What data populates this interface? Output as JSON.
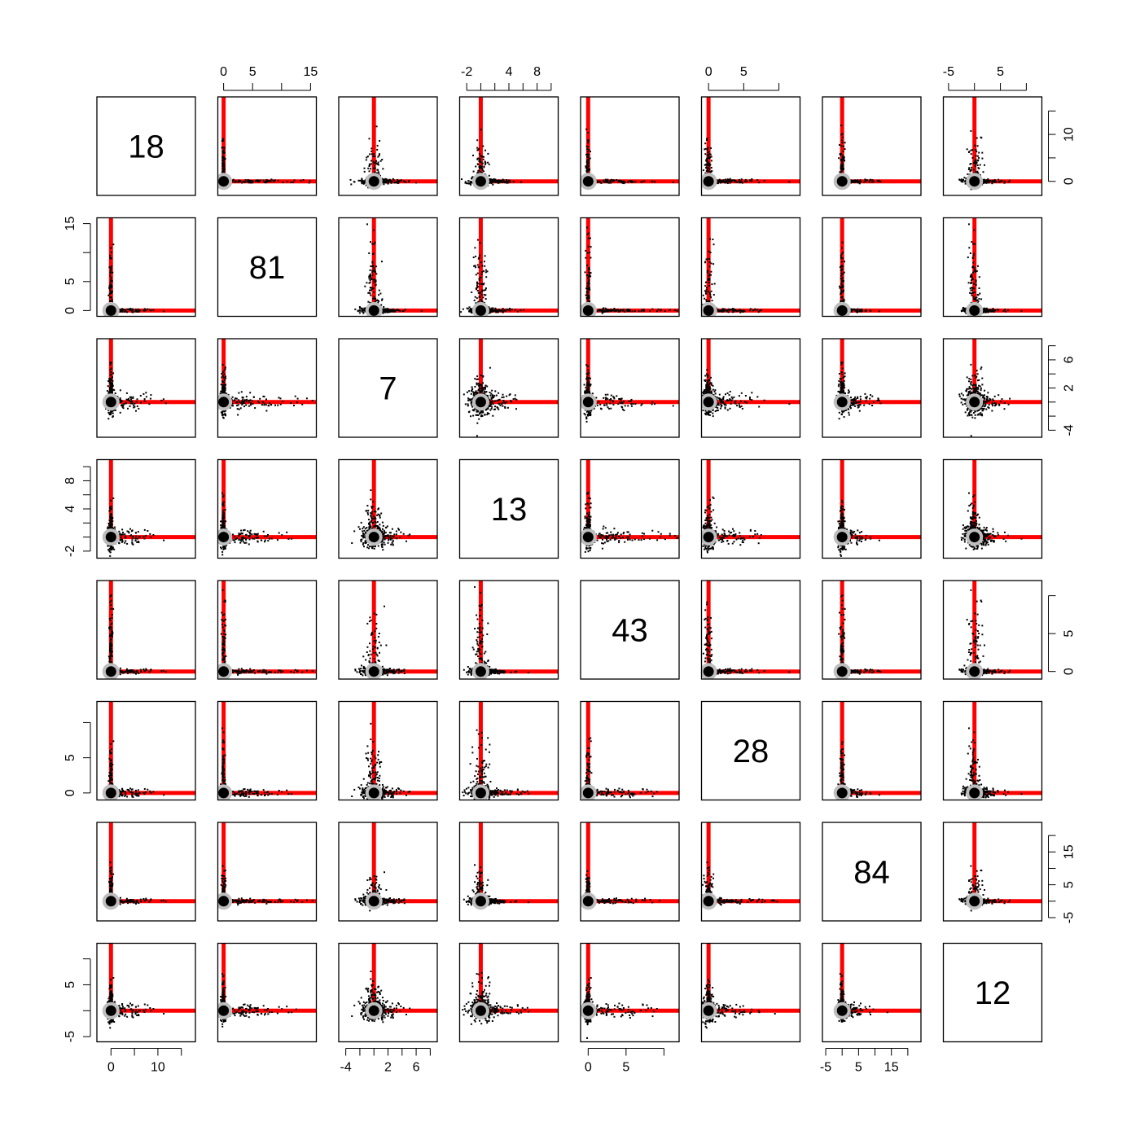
{
  "chart_data": {
    "type": "scatter",
    "layout": "pairs-matrix",
    "n_variables": 8,
    "diagonal_labels": [
      "18",
      "81",
      "7",
      "13",
      "43",
      "28",
      "84",
      "12"
    ],
    "colors": {
      "points": "#000000",
      "reference_lines": "#ff0000",
      "center_marker_fill": "#000000",
      "center_marker_ring": "#bebebe",
      "frame": "#000000"
    },
    "variables": [
      {
        "range": [
          -3,
          18
        ],
        "ticks": [
          0,
          5,
          10,
          15
        ],
        "tick_labels": [
          "0",
          "10"
        ],
        "tick_label_values": [
          0,
          10
        ]
      },
      {
        "range": [
          -1,
          16
        ],
        "ticks": [
          0,
          5,
          10,
          15
        ],
        "tick_labels": [
          "0",
          "5",
          "15"
        ],
        "tick_label_values": [
          0,
          5,
          15
        ]
      },
      {
        "range": [
          -5,
          9
        ],
        "ticks": [
          -4,
          -2,
          0,
          2,
          4,
          6,
          8
        ],
        "tick_labels": [
          "-4",
          "2",
          "6"
        ],
        "tick_label_values": [
          -4,
          2,
          6
        ]
      },
      {
        "range": [
          -3,
          11
        ],
        "ticks": [
          -2,
          0,
          2,
          4,
          6,
          8,
          10
        ],
        "tick_labels": [
          "-2",
          "4",
          "8"
        ],
        "tick_label_values": [
          -2,
          4,
          8
        ]
      },
      {
        "range": [
          -1,
          12
        ],
        "ticks": [
          0,
          5,
          10
        ],
        "tick_labels": [
          "0",
          "5"
        ],
        "tick_label_values": [
          0,
          5
        ]
      },
      {
        "range": [
          -1,
          13
        ],
        "ticks": [
          0,
          5,
          10
        ],
        "tick_labels": [
          "0",
          "5"
        ],
        "tick_label_values": [
          0,
          5
        ]
      },
      {
        "range": [
          -6,
          24
        ],
        "ticks": [
          -5,
          0,
          5,
          10,
          15,
          20
        ],
        "tick_labels": [
          "-5",
          "5",
          "15"
        ],
        "tick_label_values": [
          -5,
          5,
          15
        ]
      },
      {
        "range": [
          -6,
          13
        ],
        "ticks": [
          -5,
          0,
          5,
          10
        ],
        "tick_labels": [
          "-5",
          "5"
        ],
        "tick_label_values": [
          -5,
          5
        ]
      }
    ],
    "reference_lines": {
      "x": 0,
      "y": 0
    },
    "center_marker": {
      "x": 0,
      "y": 0
    },
    "axes": {
      "bottom": [
        1,
        3,
        5,
        7
      ],
      "top": [
        2,
        4,
        6,
        8
      ],
      "left": [
        2,
        4,
        6,
        8
      ],
      "right": [
        1,
        3,
        5,
        7
      ]
    }
  }
}
